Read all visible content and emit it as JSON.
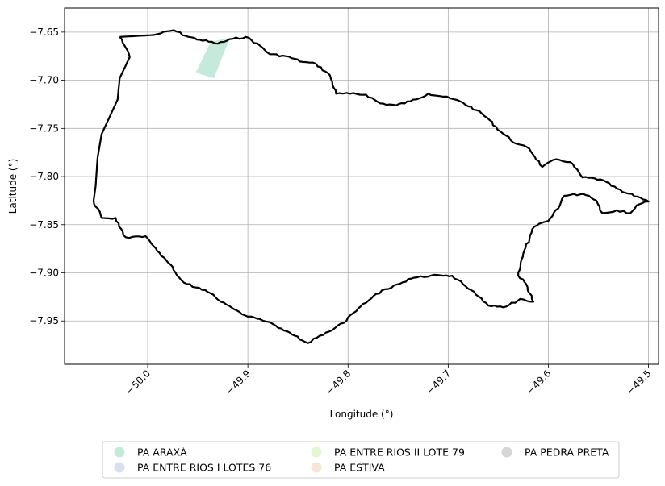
{
  "chart_data": {
    "type": "map",
    "xlabel": "Longitude (°)",
    "ylabel": "Latitude (°)",
    "xlim": [
      -50.083,
      -49.49
    ],
    "ylim": [
      -7.995,
      -7.625
    ],
    "x_ticks": [
      -50.0,
      -49.9,
      -49.8,
      -49.7,
      -49.6,
      -49.5
    ],
    "x_tick_labels": [
      "−50.0",
      "−49.9",
      "−49.8",
      "−49.7",
      "−49.6",
      "−49.5"
    ],
    "y_ticks": [
      -7.65,
      -7.7,
      -7.75,
      -7.8,
      -7.85,
      -7.9,
      -7.95
    ],
    "y_tick_labels": [
      "−7.65",
      "−7.70",
      "−7.75",
      "−7.80",
      "−7.85",
      "−7.90",
      "−7.95"
    ],
    "grid": true,
    "legend_placement": "bottom-center",
    "legend": [
      {
        "label": "PA ARAXÁ",
        "color": "#c5eadb"
      },
      {
        "label": "PA ENTRE RIOS  I LOTES 76",
        "color": "#d7dff0"
      },
      {
        "label": "PA ENTRE RIOS II LOTE 79",
        "color": "#e6f5d2"
      },
      {
        "label": "PA ESTIVA",
        "color": "#f5e6d9"
      },
      {
        "label": "PA PEDRA PRETA",
        "color": "#d6d6d6"
      }
    ],
    "area_polygon": {
      "name": "PA ARAXÁ",
      "color": "#c5eadb",
      "points": [
        [
          -49.937,
          -7.66
        ],
        [
          -49.918,
          -7.656
        ],
        [
          -49.934,
          -7.698
        ],
        [
          -49.952,
          -7.692
        ]
      ]
    },
    "boundary": [
      [
        -50.028,
        -7.655
      ],
      [
        -49.994,
        -7.653
      ],
      [
        -49.974,
        -7.648
      ],
      [
        -49.962,
        -7.654
      ],
      [
        -49.948,
        -7.658
      ],
      [
        -49.93,
        -7.662
      ],
      [
        -49.915,
        -7.657
      ],
      [
        -49.902,
        -7.655
      ],
      [
        -49.888,
        -7.664
      ],
      [
        -49.878,
        -7.673
      ],
      [
        -49.862,
        -7.675
      ],
      [
        -49.845,
        -7.681
      ],
      [
        -49.832,
        -7.683
      ],
      [
        -49.818,
        -7.695
      ],
      [
        -49.812,
        -7.714
      ],
      [
        -49.798,
        -7.714
      ],
      [
        -49.782,
        -7.715
      ],
      [
        -49.768,
        -7.724
      ],
      [
        -49.752,
        -7.726
      ],
      [
        -49.738,
        -7.722
      ],
      [
        -49.72,
        -7.714
      ],
      [
        -49.705,
        -7.717
      ],
      [
        -49.688,
        -7.722
      ],
      [
        -49.672,
        -7.731
      ],
      [
        -49.661,
        -7.739
      ],
      [
        -49.648,
        -7.753
      ],
      [
        -49.632,
        -7.766
      ],
      [
        -49.619,
        -7.771
      ],
      [
        -49.606,
        -7.79
      ],
      [
        -49.592,
        -7.782
      ],
      [
        -49.578,
        -7.785
      ],
      [
        -49.566,
        -7.801
      ],
      [
        -49.548,
        -7.803
      ],
      [
        -49.526,
        -7.816
      ],
      [
        -49.508,
        -7.822
      ],
      [
        -49.5,
        -7.826
      ],
      [
        -49.512,
        -7.83
      ],
      [
        -49.518,
        -7.838
      ],
      [
        -49.532,
        -7.835
      ],
      [
        -49.546,
        -7.838
      ],
      [
        -49.552,
        -7.825
      ],
      [
        -49.565,
        -7.818
      ],
      [
        -49.584,
        -7.82
      ],
      [
        -49.59,
        -7.833
      ],
      [
        -49.6,
        -7.846
      ],
      [
        -49.614,
        -7.852
      ],
      [
        -49.625,
        -7.88
      ],
      [
        -49.63,
        -7.903
      ],
      [
        -49.622,
        -7.912
      ],
      [
        -49.615,
        -7.93
      ],
      [
        -49.628,
        -7.927
      ],
      [
        -49.642,
        -7.935
      ],
      [
        -49.66,
        -7.934
      ],
      [
        -49.677,
        -7.918
      ],
      [
        -49.696,
        -7.903
      ],
      [
        -49.714,
        -7.902
      ],
      [
        -49.734,
        -7.905
      ],
      [
        -49.754,
        -7.913
      ],
      [
        -49.772,
        -7.922
      ],
      [
        -49.79,
        -7.937
      ],
      [
        -49.804,
        -7.952
      ],
      [
        -49.822,
        -7.962
      ],
      [
        -49.84,
        -7.973
      ],
      [
        -49.856,
        -7.964
      ],
      [
        -49.872,
        -7.955
      ],
      [
        -49.888,
        -7.948
      ],
      [
        -49.906,
        -7.943
      ],
      [
        -49.924,
        -7.931
      ],
      [
        -49.94,
        -7.92
      ],
      [
        -49.964,
        -7.91
      ],
      [
        -49.98,
        -7.889
      ],
      [
        -50.002,
        -7.862
      ],
      [
        -50.022,
        -7.863
      ],
      [
        -50.032,
        -7.843
      ],
      [
        -50.046,
        -7.843
      ],
      [
        -50.054,
        -7.825
      ],
      [
        -50.052,
        -7.81
      ],
      [
        -50.05,
        -7.78
      ],
      [
        -50.046,
        -7.756
      ],
      [
        -50.03,
        -7.72
      ],
      [
        -50.028,
        -7.698
      ],
      [
        -50.018,
        -7.676
      ],
      [
        -50.028,
        -7.655
      ]
    ]
  }
}
